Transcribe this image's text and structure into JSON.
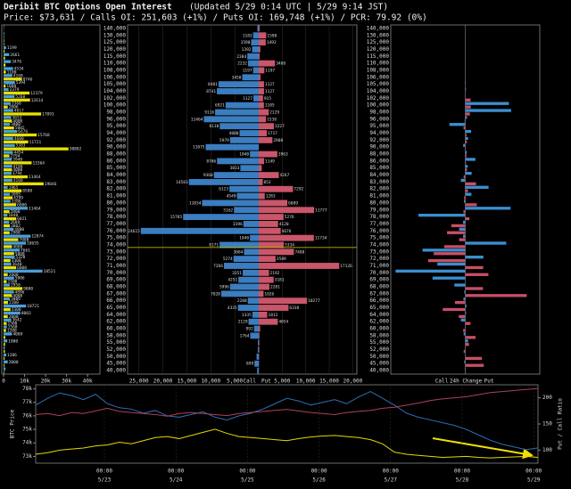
{
  "chart_data": {
    "type": "options-oi-dashboard",
    "title": "Deribit BTC Options Open Interest",
    "subtitle": "(Updated 5/29 0:14 UTC | 5/29 9:14 JST)",
    "summary": "Price: $73,631 / Calls OI: 251,603 (+1%) / Puts OI: 169,748 (+1%) / PCR: 79.92 (0%)",
    "price": 73631,
    "categories": [
      "140,000",
      "130,000",
      "125,000",
      "120,000",
      "115,000",
      "110,000",
      "108,000",
      "106,000",
      "105,000",
      "104,000",
      "102,000",
      "100,000",
      "98,000",
      "96,000",
      "95,000",
      "94,000",
      "92,000",
      "90,000",
      "88,000",
      "86,000",
      "85,000",
      "84,000",
      "83,000",
      "82,000",
      "81,000",
      "80,000",
      "79,000",
      "78,000",
      "77,000",
      "76,000",
      "75,000",
      "74,000",
      "73,000",
      "72,000",
      "71,000",
      "70,000",
      "69,000",
      "68,000",
      "67,000",
      "66,000",
      "65,000",
      "64,000",
      "62,000",
      "60,000",
      "58,000",
      "55,000",
      "52,000",
      "50,000",
      "45,000",
      "40,000"
    ],
    "left": {
      "xlim": [
        0,
        45000
      ],
      "xticks": [
        0,
        {
          "value": 10000,
          "label": "10k"
        },
        {
          "value": 20000,
          "label": "20k"
        },
        {
          "value": 30000,
          "label": "30k"
        },
        {
          "value": 40000,
          "label": "40k"
        }
      ],
      "series": [
        {
          "color": "#4a9fd8",
          "values": [
            247,
            369,
            437,
            1199,
            2661,
            3476,
            4534,
            4168,
            5394,
            2379,
            5260,
            3360,
            4617,
            3653,
            3000,
            6476,
            4600,
            5383,
            4454,
            3940,
            4109,
            3794,
            4168,
            1965,
            3095,
            3286,
            11464,
            1840,
            2689,
            4800,
            12874,
            10655,
            7661,
            5320,
            3640,
            18521,
            5006,
            2950,
            4896,
            3006,
            10721,
            8003,
            3642,
            1560,
            4009,
            1800,
            600,
            1286,
            2000,
            900
          ]
        },
        {
          "color": "#e8e000",
          "values": [
            100,
            200,
            300,
            500,
            700,
            900,
            1100,
            8746,
            1000,
            12379,
            12614,
            2006,
            17891,
            4000,
            5002,
            15768,
            11721,
            30882,
            2794,
            13364,
            4000,
            11464,
            19046,
            8580,
            4299,
            6000,
            2800,
            6021,
            3002,
            2900,
            7000,
            4008,
            5000,
            3300,
            6000,
            2000,
            1500,
            9000,
            4000,
            2100,
            3300,
            2000,
            1500,
            1200,
            800,
            700,
            600,
            500,
            400,
            300
          ]
        }
      ]
    },
    "oi": {
      "call_label": "Call",
      "put_label": "Put",
      "call_xlim": [
        0,
        27000
      ],
      "put_xlim": [
        0,
        20500
      ],
      "call_xticks": [
        {
          "value": 25000,
          "label": "25,000"
        },
        {
          "value": 20000,
          "label": "20,000"
        },
        {
          "value": 15000,
          "label": "15,000"
        },
        {
          "value": 10000,
          "label": "10,000"
        },
        {
          "value": 5000,
          "label": "5,000"
        }
      ],
      "put_xticks": [
        {
          "value": 5000,
          "label": "5,000"
        },
        {
          "value": 10000,
          "label": "10,000"
        },
        {
          "value": 15000,
          "label": "15,000"
        },
        {
          "value": 20000,
          "label": "20,000"
        }
      ],
      "calls": {
        "color": "#3b7dbf",
        "values": [
          287,
          1183,
          1590,
          1392,
          2384,
          2232,
          1197,
          3450,
          8401,
          8741,
          1127,
          6921,
          9116,
          11464,
          8138,
          4000,
          5979,
          11075,
          1840,
          8706,
          3833,
          9360,
          14583,
          6123,
          4549,
          11834,
          5162,
          15785,
          3196,
          24615,
          1840,
          8171,
          3084,
          5274,
          7266,
          3351,
          4251,
          5996,
          7820,
          2288,
          4335,
          1335,
          2129,
          992,
          1764,
          178,
          202,
          455,
          899,
          331
        ]
      },
      "puts": {
        "color": "#c9566a",
        "values": [
          190,
          1590,
          1492,
          337,
          207,
          3460,
          1197,
          367,
          1127,
          1127,
          915,
          1105,
          2129,
          1538,
          3227,
          1717,
          2908,
          17,
          3963,
          1149,
          639,
          4267,
          853,
          7292,
          1283,
          6089,
          11777,
          5276,
          4120,
          4676,
          11734,
          5334,
          7488,
          3589,
          17126,
          2192,
          3181,
          2281,
          1026,
          10277,
          6338,
          1812,
          4054,
          300,
          150,
          120,
          100,
          80,
          60,
          40
        ]
      }
    },
    "change": {
      "call_label": "Call",
      "mid_label": "24h Change",
      "put_label": "Put",
      "xlim": [
        -560,
        560
      ],
      "calls": {
        "color": "#3b8fcf",
        "values": [
          0,
          0,
          0,
          0,
          0,
          0,
          0,
          0,
          3,
          5,
          2,
          328,
          345,
          13,
          -119,
          44,
          21,
          -16,
          11,
          76,
          18,
          48,
          -33,
          175,
          46,
          -10,
          340,
          -352,
          -17,
          -46,
          -17,
          308,
          -321,
          136,
          -210,
          -524,
          -246,
          -82,
          -8,
          -14,
          9,
          6,
          -33,
          3,
          -12,
          21,
          2,
          -3,
          -8,
          -4
        ]
      },
      "puts": {
        "color": "#c84f67",
        "values": [
          0,
          0,
          0,
          0,
          0,
          0,
          0,
          0,
          1,
          2,
          40,
          42,
          35,
          -5,
          -13,
          9,
          12,
          4,
          9,
          5,
          13,
          -12,
          81,
          20,
          -9,
          87,
          -14,
          31,
          -105,
          -137,
          -46,
          -159,
          -237,
          -279,
          135,
          174,
          -1,
          133,
          462,
          -78,
          -169,
          -49,
          39,
          -16,
          77,
          28,
          -12,
          125,
          139,
          3
        ]
      }
    },
    "history": {
      "ylabel": "BTC Price",
      "y2label": "Put / Call Ratio",
      "xtick_time": "00:00",
      "xtick_dates": [
        "5/23",
        "5/24",
        "5/25",
        "5/26",
        "5/27",
        "5/28",
        "5/29"
      ],
      "ylim": [
        72500,
        78300
      ],
      "yticks": [
        {
          "value": 73000,
          "label": "73k"
        },
        {
          "value": 74000,
          "label": "74k"
        },
        {
          "value": 75000,
          "label": "75k"
        },
        {
          "value": 76000,
          "label": "76k"
        },
        {
          "value": 77000,
          "label": "77k"
        },
        {
          "value": 78000,
          "label": "78k"
        }
      ],
      "y2lim": [
        75,
        225
      ],
      "y2ticks": [
        100,
        150,
        200
      ],
      "series": [
        {
          "color": "#2f6fb5",
          "values": [
            76800,
            77300,
            77700,
            77500,
            77200,
            77600,
            76900,
            76600,
            76500,
            76200,
            76400,
            76000,
            75900,
            76100,
            76300,
            75900,
            75700,
            76000,
            76200,
            76500,
            76900,
            77300,
            77100,
            76800,
            77000,
            77200,
            76900,
            77400,
            77800,
            77300,
            76800,
            76200,
            75900,
            75700,
            75500,
            75300,
            75000,
            74600,
            74200,
            73900,
            73700,
            73500,
            73631
          ]
        },
        {
          "color": "#b0405a",
          "axis": "y2",
          "values": [
            168,
            170,
            166,
            172,
            170,
            175,
            180,
            174,
            172,
            170,
            168,
            165,
            170,
            172,
            170,
            168,
            166,
            170,
            172,
            174,
            176,
            178,
            175,
            172,
            170,
            168,
            172,
            174,
            176,
            180,
            182,
            186,
            190,
            195,
            198,
            200,
            202,
            206,
            210,
            212,
            214,
            216,
            218
          ]
        },
        {
          "color": "#e6d800",
          "axis": "y2",
          "values": [
            92,
            95,
            100,
            102,
            104,
            108,
            110,
            115,
            112,
            118,
            124,
            126,
            122,
            128,
            134,
            140,
            132,
            126,
            124,
            122,
            120,
            118,
            122,
            125,
            127,
            128,
            126,
            124,
            120,
            112,
            96,
            92,
            90,
            88,
            86,
            87,
            88,
            86,
            85,
            86,
            87,
            88,
            86
          ]
        }
      ]
    }
  }
}
